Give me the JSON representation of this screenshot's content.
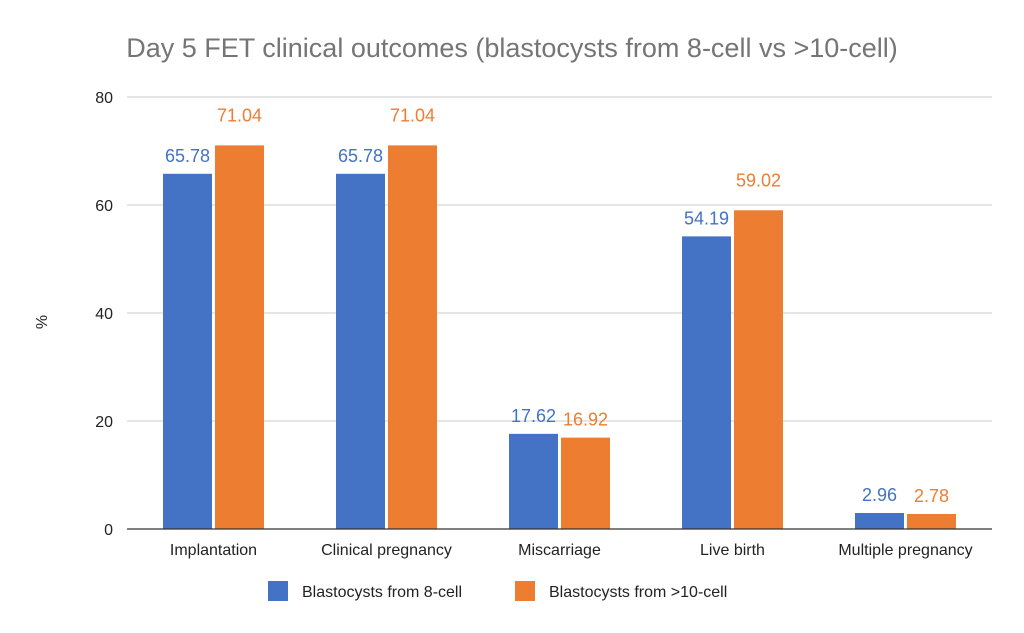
{
  "chart_data": {
    "type": "bar",
    "title": "Day 5 FET clinical outcomes (blastocysts from 8-cell vs >10-cell)",
    "ylabel": "%",
    "xlabel": "",
    "ylim": [
      0,
      80
    ],
    "yticks": [
      "0",
      "20",
      "40",
      "60",
      "80"
    ],
    "grid": true,
    "legend_position": "bottom",
    "categories": [
      "Implantation",
      "Clinical pregnancy",
      "Miscarriage",
      "Live birth",
      "Multiple pregnancy"
    ],
    "series": [
      {
        "name": "Blastocysts from 8-cell",
        "color": "#4472c4",
        "values": [
          65.78,
          65.78,
          17.62,
          54.19,
          2.96
        ],
        "labels": [
          "65.78",
          "65.78",
          "17.62",
          "54.19",
          "2.96"
        ]
      },
      {
        "name": "Blastocysts from >10-cell",
        "color": "#ed7d31",
        "values": [
          71.04,
          71.04,
          16.92,
          59.02,
          2.78
        ],
        "labels": [
          "71.04",
          "71.04",
          "16.92",
          "59.02",
          "2.78"
        ]
      }
    ]
  }
}
